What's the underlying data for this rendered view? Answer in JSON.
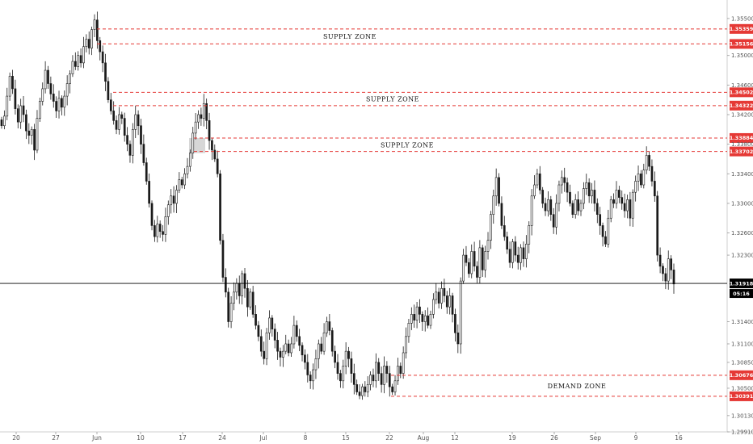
{
  "colors": {
    "candle_up": "#ffffff",
    "candle_down": "#1a1a1a",
    "wick": "#1a1a1a",
    "zone_line": "#e53935",
    "zone_tag": "#e53935",
    "price_tag": "#000000",
    "axis_text": "#555555",
    "highlight": "#d0d0d0"
  },
  "chart_data": {
    "type": "candlestick",
    "x_ticks": [
      "20",
      "27",
      "Jun",
      "10",
      "17",
      "24",
      "Jul",
      "8",
      "15",
      "22",
      "Aug",
      "12",
      "19",
      "26",
      "Sep",
      "9",
      "16"
    ],
    "y_ticks": [
      "1.35500",
      "1.35000",
      "1.34600",
      "1.34200",
      "1.33800",
      "1.33400",
      "1.33000",
      "1.32600",
      "1.32300",
      "1.31900",
      "1.31400",
      "1.31100",
      "1.30850",
      "1.30500",
      "1.30130",
      "1.29910"
    ],
    "ylim": [
      1.2991,
      1.3575
    ],
    "levels": [
      {
        "value": 1.35359,
        "label": "1.35359"
      },
      {
        "value": 1.35156,
        "label": "1.35156"
      },
      {
        "value": 1.34502,
        "label": "1.34502"
      },
      {
        "value": 1.34322,
        "label": "1.34322"
      },
      {
        "value": 1.33884,
        "label": "1.33884"
      },
      {
        "value": 1.33702,
        "label": "1.33702"
      },
      {
        "value": 1.30676,
        "label": "1.30676"
      },
      {
        "value": 1.30391,
        "label": "1.30391"
      }
    ],
    "zones": [
      {
        "label": "SUPPLY ZONE",
        "top": 1.35359,
        "bottom": 1.35156
      },
      {
        "label": "SUPPLY ZONE",
        "top": 1.34502,
        "bottom": 1.34322
      },
      {
        "label": "SUPPLY ZONE",
        "top": 1.33884,
        "bottom": 1.33702
      },
      {
        "label": "DEMAND ZONE",
        "top": 1.30676,
        "bottom": 1.30391
      }
    ],
    "current_price": {
      "value": 1.31918,
      "label": "1.31918",
      "countdown": "05:16"
    },
    "closes": [
      1.3405,
      1.3418,
      1.3445,
      1.3472,
      1.3455,
      1.3428,
      1.341,
      1.3432,
      1.342,
      1.3398,
      1.3392,
      1.34,
      1.3372,
      1.3415,
      1.3438,
      1.3455,
      1.348,
      1.3462,
      1.3448,
      1.3438,
      1.3425,
      1.3442,
      1.343,
      1.3445,
      1.3462,
      1.3475,
      1.3492,
      1.3485,
      1.35,
      1.349,
      1.3512,
      1.3522,
      1.351,
      1.3535,
      1.3548,
      1.352,
      1.3505,
      1.349,
      1.3465,
      1.344,
      1.3425,
      1.3412,
      1.34,
      1.342,
      1.3415,
      1.3392,
      1.338,
      1.3365,
      1.34,
      1.342,
      1.3405,
      1.338,
      1.3355,
      1.333,
      1.33,
      1.327,
      1.3255,
      1.3272,
      1.3262,
      1.3258,
      1.3282,
      1.3298,
      1.331,
      1.33,
      1.3318,
      1.3332,
      1.3325,
      1.334,
      1.335,
      1.3368,
      1.3395,
      1.341,
      1.342,
      1.3415,
      1.3435,
      1.3412,
      1.3385,
      1.3372,
      1.336,
      1.334,
      1.325,
      1.32,
      1.318,
      1.314,
      1.3165,
      1.318,
      1.3192,
      1.3175,
      1.3205,
      1.3185,
      1.316,
      1.318,
      1.315,
      1.3135,
      1.312,
      1.31,
      1.309,
      1.3125,
      1.3145,
      1.313,
      1.3115,
      1.31,
      1.3092,
      1.31,
      1.311,
      1.3098,
      1.311,
      1.3135,
      1.312,
      1.3108,
      1.3095,
      1.3085,
      1.3068,
      1.306,
      1.3075,
      1.309,
      1.311,
      1.31,
      1.3125,
      1.314,
      1.3128,
      1.31,
      1.3085,
      1.307,
      1.306,
      1.308,
      1.31,
      1.309,
      1.307,
      1.3055,
      1.3045,
      1.304,
      1.3052,
      1.3045,
      1.3055,
      1.3068,
      1.306,
      1.3085,
      1.307,
      1.3055,
      1.308,
      1.307,
      1.3052,
      1.3045,
      1.306,
      1.308,
      1.307,
      1.3098,
      1.312,
      1.3138,
      1.315,
      1.3142,
      1.316,
      1.315,
      1.314,
      1.3148,
      1.3135,
      1.315,
      1.317,
      1.318,
      1.3165,
      1.3185,
      1.3175,
      1.316,
      1.3175,
      1.315,
      1.3125,
      1.311,
      1.3195,
      1.323,
      1.322,
      1.3205,
      1.3235,
      1.3215,
      1.32,
      1.324,
      1.321,
      1.3235,
      1.325,
      1.3285,
      1.331,
      1.3335,
      1.33,
      1.327,
      1.3255,
      1.3238,
      1.322,
      1.3248,
      1.323,
      1.322,
      1.324,
      1.3225,
      1.3245,
      1.327,
      1.331,
      1.3325,
      1.334,
      1.3318,
      1.33,
      1.329,
      1.3305,
      1.3285,
      1.3268,
      1.33,
      1.3325,
      1.3335,
      1.3328,
      1.3315,
      1.33,
      1.3285,
      1.3305,
      1.329,
      1.33,
      1.332,
      1.3328,
      1.331,
      1.3318,
      1.33,
      1.3285,
      1.327,
      1.3255,
      1.3245,
      1.328,
      1.3305,
      1.33,
      1.3318,
      1.3308,
      1.33,
      1.329,
      1.3305,
      1.328,
      1.3315,
      1.333,
      1.334,
      1.3325,
      1.3345,
      1.3365,
      1.335,
      1.333,
      1.331,
      1.323,
      1.3215,
      1.3205,
      1.3195,
      1.3225,
      1.321,
      1.3191
    ]
  }
}
